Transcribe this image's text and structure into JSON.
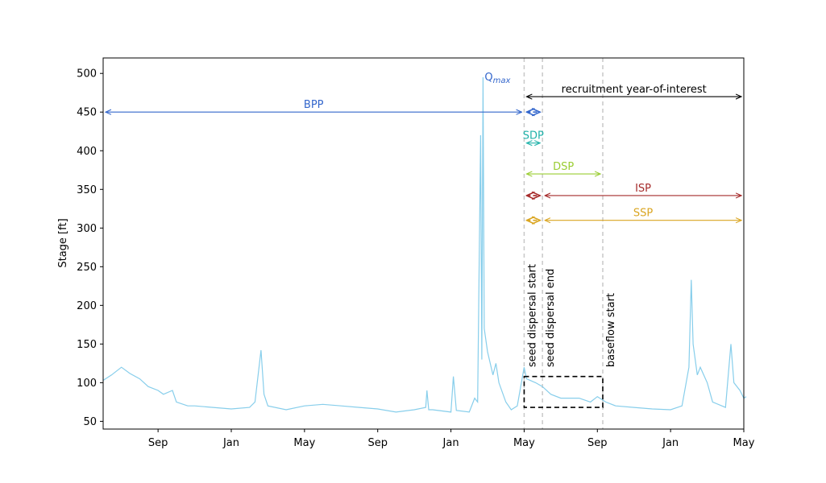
{
  "chart_data": {
    "type": "line",
    "title": "",
    "xlabel": "",
    "ylabel": "Stage [ft]",
    "ylim": [
      40,
      520
    ],
    "x_range_months": [
      "2013-06",
      "2016-05"
    ],
    "grid": false,
    "y_ticks": [
      50,
      100,
      150,
      200,
      250,
      300,
      350,
      400,
      450,
      500
    ],
    "x_ticks": [
      {
        "month": "2013-09",
        "label": "Sep"
      },
      {
        "month": "2014-01",
        "label": "Jan"
      },
      {
        "month": "2014-05",
        "label": "May"
      },
      {
        "month": "2014-09",
        "label": "Sep"
      },
      {
        "month": "2015-01",
        "label": "Jan"
      },
      {
        "month": "2015-05",
        "label": "May"
      },
      {
        "month": "2015-09",
        "label": "Sep"
      },
      {
        "month": "2016-01",
        "label": "Jan"
      },
      {
        "month": "2016-05",
        "label": "May"
      }
    ],
    "series": [
      {
        "color": "#87CEEB",
        "points": [
          [
            "2013-06",
            103
          ],
          [
            "2013-06-15",
            110
          ],
          [
            "2013-07",
            120
          ],
          [
            "2013-07-15",
            112
          ],
          [
            "2013-08",
            105
          ],
          [
            "2013-08-15",
            95
          ],
          [
            "2013-09",
            90
          ],
          [
            "2013-09-10",
            85
          ],
          [
            "2013-09-25",
            90
          ],
          [
            "2013-10",
            75
          ],
          [
            "2013-10-20",
            70
          ],
          [
            "2013-11",
            70
          ],
          [
            "2013-12",
            68
          ],
          [
            "2014-01",
            66
          ],
          [
            "2014-02",
            68
          ],
          [
            "2014-02-10",
            75
          ],
          [
            "2014-02-20",
            142
          ],
          [
            "2014-02-25",
            85
          ],
          [
            "2014-03",
            70
          ],
          [
            "2014-04",
            65
          ],
          [
            "2014-05",
            70
          ],
          [
            "2014-06",
            72
          ],
          [
            "2014-07",
            70
          ],
          [
            "2014-08",
            68
          ],
          [
            "2014-09",
            66
          ],
          [
            "2014-10",
            62
          ],
          [
            "2014-11",
            65
          ],
          [
            "2014-11-20",
            68
          ],
          [
            "2014-11-22",
            90
          ],
          [
            "2014-11-25",
            65
          ],
          [
            "2014-12",
            65
          ],
          [
            "2015-01",
            62
          ],
          [
            "2015-01-05",
            108
          ],
          [
            "2015-01-10",
            64
          ],
          [
            "2015-02",
            62
          ],
          [
            "2015-02-10",
            80
          ],
          [
            "2015-02-15",
            75
          ],
          [
            "2015-02-20",
            420
          ],
          [
            "2015-02-22",
            130
          ],
          [
            "2015-02-24",
            495
          ],
          [
            "2015-02-26",
            170
          ],
          [
            "2015-03",
            140
          ],
          [
            "2015-03-10",
            110
          ],
          [
            "2015-03-15",
            125
          ],
          [
            "2015-03-20",
            100
          ],
          [
            "2015-04",
            75
          ],
          [
            "2015-04-10",
            65
          ],
          [
            "2015-04-20",
            70
          ],
          [
            "2015-05",
            120
          ],
          [
            "2015-05-05",
            105
          ],
          [
            "2015-05-20",
            100
          ],
          [
            "2015-06",
            95
          ],
          [
            "2015-06-15",
            85
          ],
          [
            "2015-07",
            80
          ],
          [
            "2015-08",
            80
          ],
          [
            "2015-08-20",
            75
          ],
          [
            "2015-09",
            82
          ],
          [
            "2015-09-15",
            75
          ],
          [
            "2015-10",
            70
          ],
          [
            "2015-11",
            68
          ],
          [
            "2015-12",
            66
          ],
          [
            "2016-01",
            65
          ],
          [
            "2016-01-20",
            70
          ],
          [
            "2016-02",
            120
          ],
          [
            "2016-02-05",
            233
          ],
          [
            "2016-02-08",
            150
          ],
          [
            "2016-02-15",
            110
          ],
          [
            "2016-02-20",
            120
          ],
          [
            "2016-03",
            100
          ],
          [
            "2016-03-10",
            75
          ],
          [
            "2016-04",
            68
          ],
          [
            "2016-04-10",
            150
          ],
          [
            "2016-04-15",
            100
          ],
          [
            "2016-04-25",
            90
          ],
          [
            "2016-05",
            80
          ],
          [
            "2016-05-05",
            82
          ]
        ]
      }
    ],
    "vlines": [
      {
        "month": "2015-05",
        "label": "seed dispersal start"
      },
      {
        "month": "2015-06",
        "label": "seed dispersal end"
      },
      {
        "month": "2015-09-10",
        "label": "baseflow start"
      }
    ],
    "annotations": [
      {
        "label": "BPP",
        "y": 450,
        "from": "2013-06",
        "to": "2015-05",
        "color": "#3366CC",
        "dashed": false
      },
      {
        "label": "",
        "y": 450,
        "from": "2015-05",
        "to": "2015-06",
        "color": "#3366CC",
        "dashed": true
      },
      {
        "label": "recruitment year-of-interest",
        "y": 470,
        "from": "2015-05",
        "to": "2016-05",
        "color": "#000000",
        "dashed": false
      },
      {
        "label": "SDP",
        "y": 410,
        "from": "2015-05",
        "to": "2015-06",
        "color": "#20B2AA",
        "dashed": false
      },
      {
        "label": "DSP",
        "y": 370,
        "from": "2015-05",
        "to": "2015-09-10",
        "color": "#9ACD32",
        "dashed": false
      },
      {
        "label": "",
        "y": 342,
        "from": "2015-05",
        "to": "2015-06",
        "color": "#A52A2A",
        "dashed": true
      },
      {
        "label": "ISP",
        "y": 342,
        "from": "2015-06",
        "to": "2016-05",
        "color": "#A52A2A",
        "dashed": false
      },
      {
        "label": "",
        "y": 310,
        "from": "2015-05",
        "to": "2015-06",
        "color": "#DAA520",
        "dashed": true
      },
      {
        "label": "SSP",
        "y": 310,
        "from": "2015-06",
        "to": "2016-05",
        "color": "#DAA520",
        "dashed": false
      }
    ],
    "qmax": {
      "label": "Q",
      "sub": "max",
      "month": "2015-02-24",
      "y": 495,
      "color": "#3366CC"
    },
    "box": {
      "from": "2015-05",
      "to": "2015-09-10",
      "y0": 68,
      "y1": 108
    }
  }
}
